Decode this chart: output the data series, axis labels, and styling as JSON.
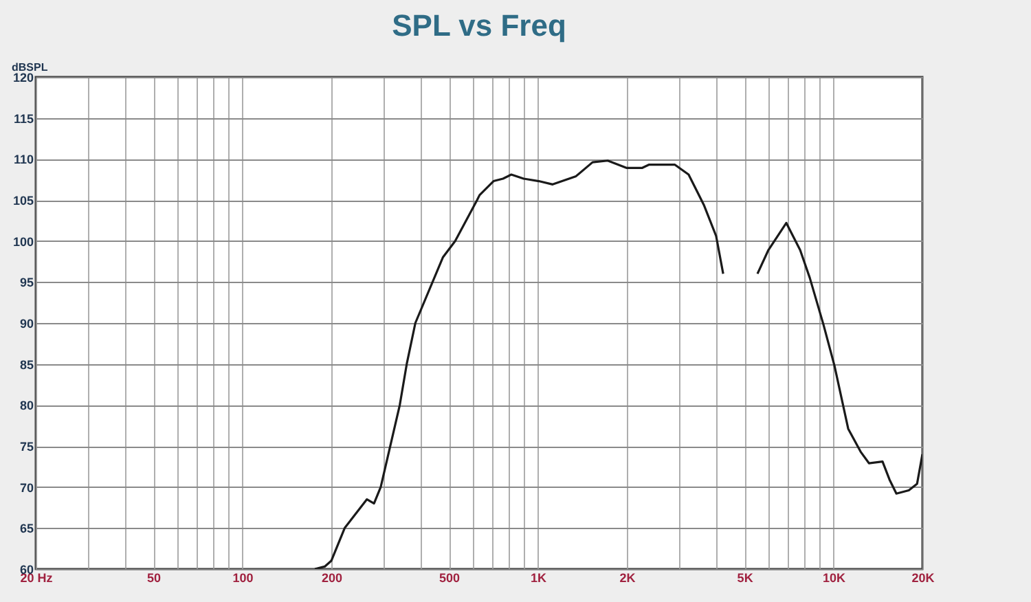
{
  "chart_data": {
    "type": "line",
    "title": "SPL vs Freq",
    "ylabel": "dBSPL",
    "log": "x",
    "grid": true,
    "marker": "none",
    "line_style": "solid",
    "xlim": [
      20,
      20000
    ],
    "ylim": [
      60,
      120
    ],
    "xticks": [
      {
        "value": 20,
        "label": "20  Hz"
      },
      {
        "value": 30,
        "label": null
      },
      {
        "value": 40,
        "label": null
      },
      50,
      {
        "value": 60,
        "label": null
      },
      {
        "value": 70,
        "label": null
      },
      {
        "value": 80,
        "label": null
      },
      {
        "value": 90,
        "label": null
      },
      100,
      {
        "value": 300,
        "label": null
      },
      {
        "value": 400,
        "label": null
      },
      200,
      500,
      {
        "value": 600,
        "label": null
      },
      {
        "value": 700,
        "label": null
      },
      {
        "value": 800,
        "label": null
      },
      {
        "value": 900,
        "label": null
      },
      {
        "value": 1000,
        "label": "1K"
      },
      {
        "value": 2000,
        "label": "2K"
      },
      {
        "value": 3000,
        "label": null
      },
      {
        "value": 4000,
        "label": null
      },
      {
        "value": 5000,
        "label": "5K"
      },
      {
        "value": 6000,
        "label": null
      },
      {
        "value": 7000,
        "label": null
      },
      {
        "value": 8000,
        "label": null
      },
      {
        "value": 9000,
        "label": null
      },
      {
        "value": 10000,
        "label": "10K"
      },
      {
        "value": 20000,
        "label": "20K"
      }
    ],
    "yticks": [
      60,
      65,
      70,
      75,
      80,
      85,
      90,
      95,
      100,
      105,
      110,
      115,
      120
    ],
    "series": [
      {
        "color": "#1a1a1a",
        "x": [
          176,
          190,
          200,
          222,
          264,
          279,
          294,
          341,
          360,
          385,
          477,
          525,
          623,
          635,
          708,
          762,
          813,
          895,
          1007,
          1122,
          1346,
          1531,
          1723,
          2000,
          2250,
          2373,
          2909,
          3236,
          3644,
          4010,
          4236,
          4800,
          5533,
          6026,
          6928,
          7714,
          8318,
          9253,
          10080,
          11220,
          12360,
          13190,
          14660,
          15480,
          16330,
          17990,
          19190,
          20000
        ],
        "values": [
          60,
          60.3,
          61,
          65,
          68.5,
          68,
          70,
          80,
          85,
          90,
          98,
          100,
          105,
          105.6,
          107.3,
          107.6,
          108.1,
          107.6,
          107.3,
          106.9,
          107.9,
          109.6,
          109.8,
          108.9,
          108.9,
          109.3,
          109.3,
          108.1,
          104.4,
          100.6,
          96,
          null,
          96,
          98.9,
          102.2,
          98.9,
          95.5,
          89.8,
          84.8,
          77.1,
          74.3,
          72.9,
          73.1,
          70.9,
          69.2,
          69.6,
          70.4,
          74
        ]
      }
    ]
  }
}
